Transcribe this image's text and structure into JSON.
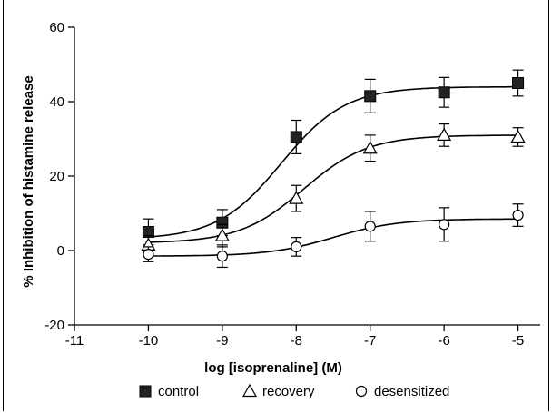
{
  "chart_data": {
    "type": "scatter",
    "xlabel": "log [isoprenaline] (M)",
    "ylabel": "% Inhibition of histamine release",
    "xlim": [
      -11,
      -4.7
    ],
    "ylim": [
      -20,
      60
    ],
    "xticks": [
      -11,
      -10,
      -9,
      -8,
      -7,
      -6,
      -5
    ],
    "yticks": [
      -20,
      0,
      20,
      40,
      60
    ],
    "grid": false,
    "legend_position": "bottom",
    "series": [
      {
        "name": "control",
        "marker": "filled-square",
        "x": [
          -10,
          -9,
          -8,
          -7,
          -6,
          -5
        ],
        "y": [
          5,
          7.5,
          30.5,
          41.5,
          42.5,
          45
        ],
        "err": [
          3.5,
          3.5,
          4.5,
          4.5,
          4,
          3.5
        ],
        "fit": {
          "bottom": 3,
          "top": 44,
          "logEC50": -8.2,
          "slope": 1
        }
      },
      {
        "name": "recovery",
        "marker": "open-triangle",
        "x": [
          -10,
          -9,
          -8,
          -7,
          -6,
          -5
        ],
        "y": [
          1.5,
          4,
          14,
          27.5,
          31,
          30.5
        ],
        "err": [
          2.5,
          3,
          3.5,
          3.5,
          3,
          2.5
        ],
        "fit": {
          "bottom": 2,
          "top": 31,
          "logEC50": -7.9,
          "slope": 1
        }
      },
      {
        "name": "desensitized",
        "marker": "open-circle",
        "x": [
          -10,
          -9,
          -8,
          -7,
          -6,
          -5
        ],
        "y": [
          -1,
          -1.5,
          1,
          6.5,
          7,
          9.5
        ],
        "err": [
          2,
          3,
          2.5,
          4,
          4.5,
          3
        ],
        "fit": {
          "bottom": -1.5,
          "top": 8.5,
          "logEC50": -7.5,
          "slope": 1
        }
      }
    ]
  }
}
